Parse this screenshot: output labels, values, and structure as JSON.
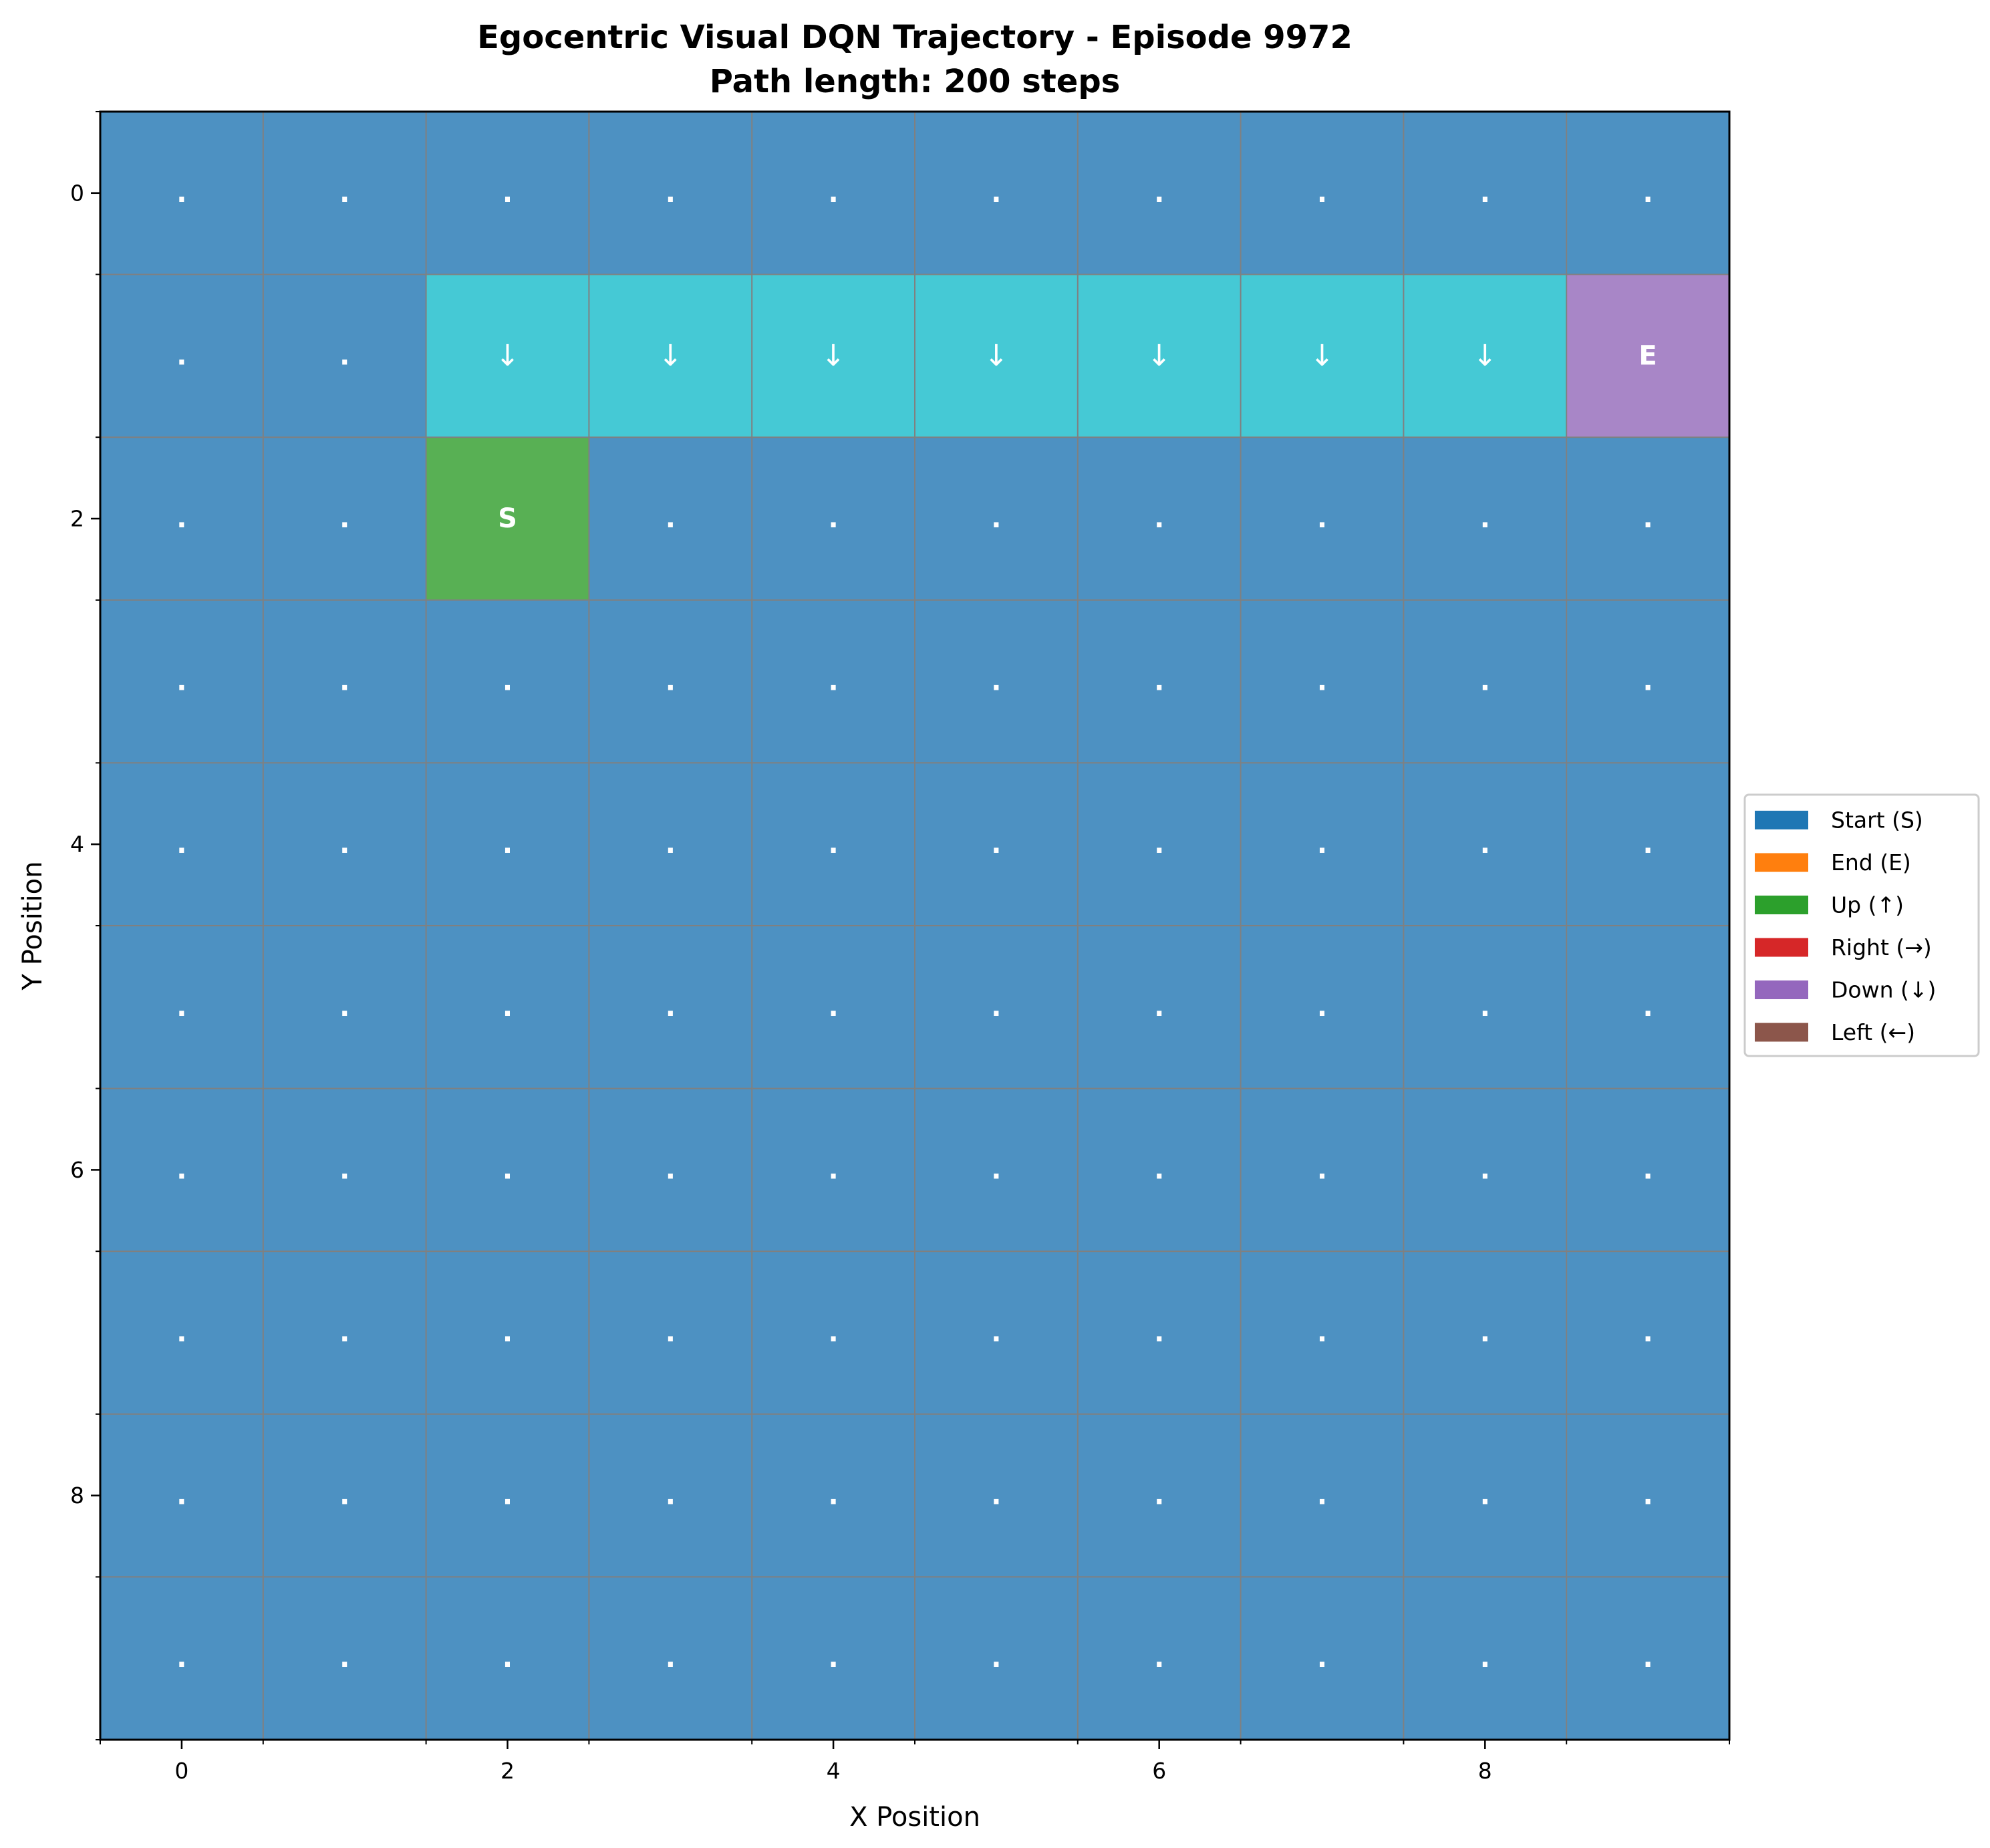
{
  "chart_data": {
    "type": "heatmap",
    "title_line1": "Egocentric Visual DQN Trajectory - Episode 9972",
    "title_line2": "Path length: 200 steps",
    "xlabel": "X Position",
    "ylabel": "Y Position",
    "grid_size": 10,
    "xlim": [
      -0.5,
      9.5
    ],
    "ylim": [
      9.5,
      -0.5
    ],
    "x_major_ticks": [
      0,
      2,
      4,
      6,
      8
    ],
    "y_major_ticks": [
      0,
      2,
      4,
      6,
      8
    ],
    "x_tick_labels": [
      "0",
      "2",
      "4",
      "6",
      "8"
    ],
    "y_tick_labels": [
      "0",
      "2",
      "4",
      "6",
      "8"
    ],
    "grid": true,
    "cell_colors": {
      "background": "#4d91c2",
      "start": "#58b054",
      "path": "#45c9d5",
      "end": "#a886c7"
    },
    "cells": [
      {
        "x": 2,
        "y": 2,
        "kind": "start",
        "label": "S"
      },
      {
        "x": 2,
        "y": 1,
        "kind": "path",
        "label": "↓"
      },
      {
        "x": 3,
        "y": 1,
        "kind": "path",
        "label": "↓"
      },
      {
        "x": 4,
        "y": 1,
        "kind": "path",
        "label": "↓"
      },
      {
        "x": 5,
        "y": 1,
        "kind": "path",
        "label": "↓"
      },
      {
        "x": 6,
        "y": 1,
        "kind": "path",
        "label": "↓"
      },
      {
        "x": 7,
        "y": 1,
        "kind": "path",
        "label": "↓"
      },
      {
        "x": 8,
        "y": 1,
        "kind": "path",
        "label": "↓"
      },
      {
        "x": 9,
        "y": 1,
        "kind": "end",
        "label": "E"
      }
    ],
    "empty_cell_label": ".",
    "legend_position": "center-right",
    "legend": [
      {
        "label": "Start (S)",
        "color": "#1f77b4"
      },
      {
        "label": "End (E)",
        "color": "#ff7f0e"
      },
      {
        "label": "Up (↑)",
        "color": "#2ca02c"
      },
      {
        "label": "Right (→)",
        "color": "#d62728"
      },
      {
        "label": "Down (↓)",
        "color": "#9467bd"
      },
      {
        "label": "Left (←)",
        "color": "#8c564b"
      }
    ]
  }
}
